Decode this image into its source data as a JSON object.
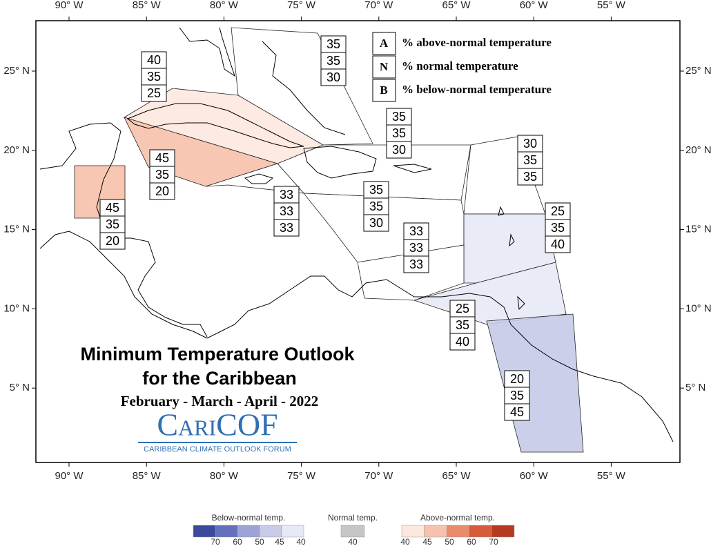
{
  "title": "Minimum Temperature Outlook",
  "title_line2": "for the Caribbean",
  "period": "February - March - April - 2022",
  "logo": {
    "name": "CariCOF",
    "tagline": "CARIBBEAN CLIMATE OUTLOOK FORUM"
  },
  "longitudes": [
    "90° W",
    "85° W",
    "80° W",
    "75° W",
    "70° W",
    "65° W",
    "60° W",
    "55° W"
  ],
  "latitudes": [
    "25° N",
    "20° N",
    "15° N",
    "10° N",
    "5° N"
  ],
  "key": [
    {
      "letter": "A",
      "text": "% above-normal temperature"
    },
    {
      "letter": "N",
      "text": "% normal temperature"
    },
    {
      "letter": "B",
      "text": "% below-normal temperature"
    }
  ],
  "regions": [
    {
      "above": 40,
      "normal": 35,
      "below": 25
    },
    {
      "above": 35,
      "normal": 35,
      "below": 30
    },
    {
      "above": 35,
      "normal": 35,
      "below": 30
    },
    {
      "above": 30,
      "normal": 35,
      "below": 35
    },
    {
      "above": 45,
      "normal": 35,
      "below": 20
    },
    {
      "above": 45,
      "normal": 35,
      "below": 20
    },
    {
      "above": 33,
      "normal": 33,
      "below": 33
    },
    {
      "above": 35,
      "normal": 35,
      "below": 30
    },
    {
      "above": 25,
      "normal": 35,
      "below": 40
    },
    {
      "above": 33,
      "normal": 33,
      "below": 33
    },
    {
      "above": 25,
      "normal": 35,
      "below": 40
    },
    {
      "above": 20,
      "normal": 35,
      "below": 45
    }
  ],
  "colorbar": {
    "below": {
      "label": "Below-normal temp.",
      "ticks": [
        70,
        60,
        50,
        45,
        40
      ],
      "colors": [
        "#3b4a9a",
        "#6470bb",
        "#9ca3d5",
        "#c7cbe8",
        "#e7e9f6"
      ]
    },
    "normal": {
      "label": "Normal temp.",
      "ticks": [
        40
      ],
      "colors": [
        "#c6c6c6"
      ]
    },
    "above": {
      "label": "Above-normal temp.",
      "ticks": [
        40,
        45,
        50,
        60,
        70
      ],
      "colors": [
        "#fde8e0",
        "#f7c2ad",
        "#ea8b6d",
        "#d65a3c",
        "#b53a22"
      ]
    }
  }
}
